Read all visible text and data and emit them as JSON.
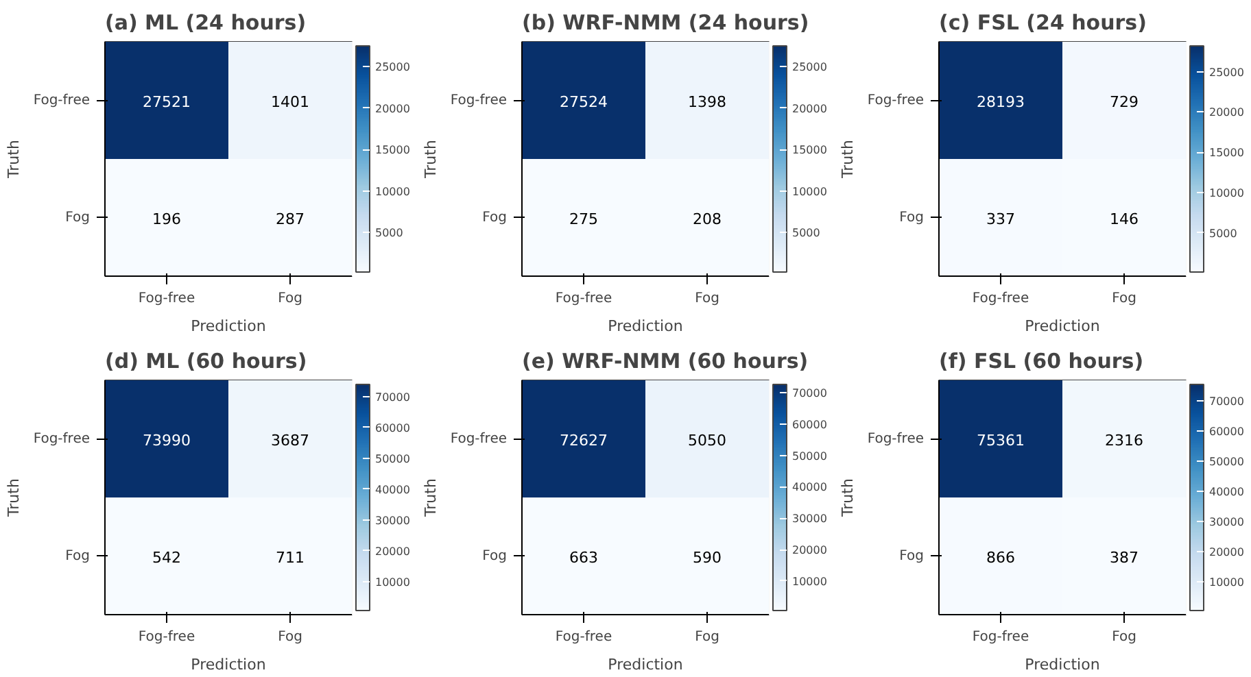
{
  "chart_data": [
    {
      "type": "heatmap",
      "title": "(a) ML (24 hours)",
      "xlabel": "Prediction",
      "ylabel": "Truth",
      "categories": [
        "Fog-free",
        "Fog"
      ],
      "y_categories": [
        "Fog-free",
        "Fog"
      ],
      "cells": [
        [
          27521,
          1401
        ],
        [
          196,
          287
        ]
      ],
      "clim": [
        196,
        27521
      ],
      "cticks": [
        5000,
        10000,
        15000,
        20000,
        25000
      ],
      "data_labels": true
    },
    {
      "type": "heatmap",
      "title": "(b) WRF-NMM (24 hours)",
      "xlabel": "Prediction",
      "ylabel": "Truth",
      "categories": [
        "Fog-free",
        "Fog"
      ],
      "y_categories": [
        "Fog-free",
        "Fog"
      ],
      "cells": [
        [
          27524,
          1398
        ],
        [
          275,
          208
        ]
      ],
      "clim": [
        208,
        27524
      ],
      "cticks": [
        5000,
        10000,
        15000,
        20000,
        25000
      ],
      "data_labels": true
    },
    {
      "type": "heatmap",
      "title": "(c) FSL (24 hours)",
      "xlabel": "Prediction",
      "ylabel": "Truth",
      "categories": [
        "Fog-free",
        "Fog"
      ],
      "y_categories": [
        "Fog-free",
        "Fog"
      ],
      "cells": [
        [
          28193,
          729
        ],
        [
          337,
          146
        ]
      ],
      "clim": [
        146,
        28193
      ],
      "cticks": [
        5000,
        10000,
        15000,
        20000,
        25000
      ],
      "data_labels": true
    },
    {
      "type": "heatmap",
      "title": "(d) ML (60 hours)",
      "xlabel": "Prediction",
      "ylabel": "Truth",
      "categories": [
        "Fog-free",
        "Fog"
      ],
      "y_categories": [
        "Fog-free",
        "Fog"
      ],
      "cells": [
        [
          73990,
          3687
        ],
        [
          542,
          711
        ]
      ],
      "clim": [
        542,
        73990
      ],
      "cticks": [
        10000,
        20000,
        30000,
        40000,
        50000,
        60000,
        70000
      ],
      "data_labels": true
    },
    {
      "type": "heatmap",
      "title": "(e) WRF-NMM (60 hours)",
      "xlabel": "Prediction",
      "ylabel": "Truth",
      "categories": [
        "Fog-free",
        "Fog"
      ],
      "y_categories": [
        "Fog-free",
        "Fog"
      ],
      "cells": [
        [
          72627,
          5050
        ],
        [
          663,
          590
        ]
      ],
      "clim": [
        590,
        72627
      ],
      "cticks": [
        10000,
        20000,
        30000,
        40000,
        50000,
        60000,
        70000
      ],
      "data_labels": true
    },
    {
      "type": "heatmap",
      "title": "(f) FSL (60 hours)",
      "xlabel": "Prediction",
      "ylabel": "Truth",
      "categories": [
        "Fog-free",
        "Fog"
      ],
      "y_categories": [
        "Fog-free",
        "Fog"
      ],
      "cells": [
        [
          75361,
          2316
        ],
        [
          866,
          387
        ]
      ],
      "clim": [
        387,
        75361
      ],
      "cticks": [
        10000,
        20000,
        30000,
        40000,
        50000,
        60000,
        70000
      ],
      "data_labels": true
    }
  ]
}
